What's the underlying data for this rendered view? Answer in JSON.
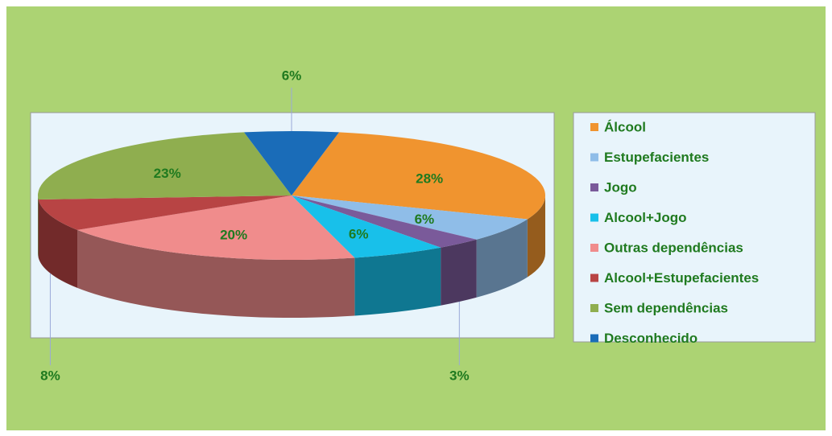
{
  "chart_data": {
    "type": "pie",
    "categories": [
      "Álcool",
      "Estupefacientes",
      "Jogo",
      "Alcool+Jogo",
      "Outras dependências",
      "Alcool+Estupefacientes",
      "Sem dependências",
      "Desconhecido"
    ],
    "values": [
      28,
      6,
      3,
      6,
      20,
      8,
      23,
      6
    ],
    "value_labels": [
      "28%",
      "6%",
      "3%",
      "6%",
      "20%",
      "8%",
      "23%",
      "6%"
    ],
    "colors": [
      "#f0942f",
      "#8fbde8",
      "#7a5a9a",
      "#18c0ea",
      "#f08c8c",
      "#b84444",
      "#8fae4f",
      "#1a6cb8"
    ],
    "legend": "right"
  }
}
